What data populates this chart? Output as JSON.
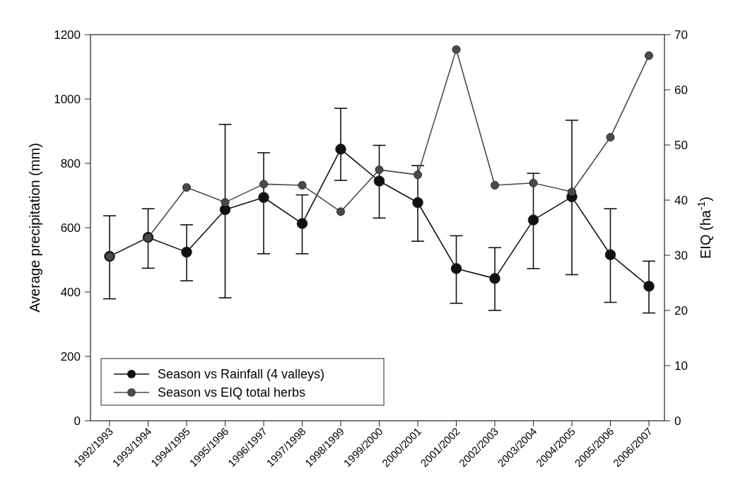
{
  "chart_data": {
    "type": "line",
    "ylabel": "Average precipitation (mm)",
    "y2label": "EIQ (ha$^{-1}$)",
    "categories": [
      "1992/1993",
      "1993/1994",
      "1994/1995",
      "1995/1996",
      "1996/1997",
      "1997/1998",
      "1998/1999",
      "1999/2000",
      "2000/2001",
      "2001/2002",
      "2002/2003",
      "2003/2004",
      "2004/2005",
      "2005/2006",
      "2006/2007"
    ],
    "series": [
      {
        "name": "Season vs Rainfall (4 valleys)",
        "color": "#111111",
        "values": [
          511,
          570,
          524,
          656,
          694,
          613,
          844,
          745,
          678,
          473,
          442,
          624,
          696,
          516,
          418
        ],
        "errors": [
          [
            379,
            637
          ],
          [
            474,
            659
          ],
          [
            435,
            609
          ],
          [
            382,
            921
          ],
          [
            519,
            833
          ],
          [
            519,
            702
          ],
          [
            747,
            971
          ],
          [
            630,
            856
          ],
          [
            558,
            793
          ],
          [
            365,
            575
          ],
          [
            343,
            538
          ],
          [
            473,
            769
          ],
          [
            454,
            934
          ],
          [
            368,
            659
          ],
          [
            335,
            496
          ]
        ]
      },
      {
        "name": "Season vs EIQ total herbs",
        "color": "#4a4a4a",
        "axis": "y2",
        "values": [
          29.8,
          33.2,
          42.3,
          39.6,
          42.9,
          42.7,
          37.9,
          45.5,
          44.6,
          67.3,
          42.7,
          43.1,
          41.5,
          51.4,
          66.2
        ]
      }
    ],
    "ylim": [
      0,
      1200
    ],
    "yticks": [
      0,
      200,
      400,
      600,
      800,
      1000,
      1200
    ],
    "y2lim": [
      0,
      70
    ],
    "y2ticks": [
      0,
      10,
      20,
      30,
      40,
      50,
      60,
      70
    ],
    "grid": false,
    "legend": "bottom left",
    "marker": "circle",
    "line_style": "solid"
  }
}
